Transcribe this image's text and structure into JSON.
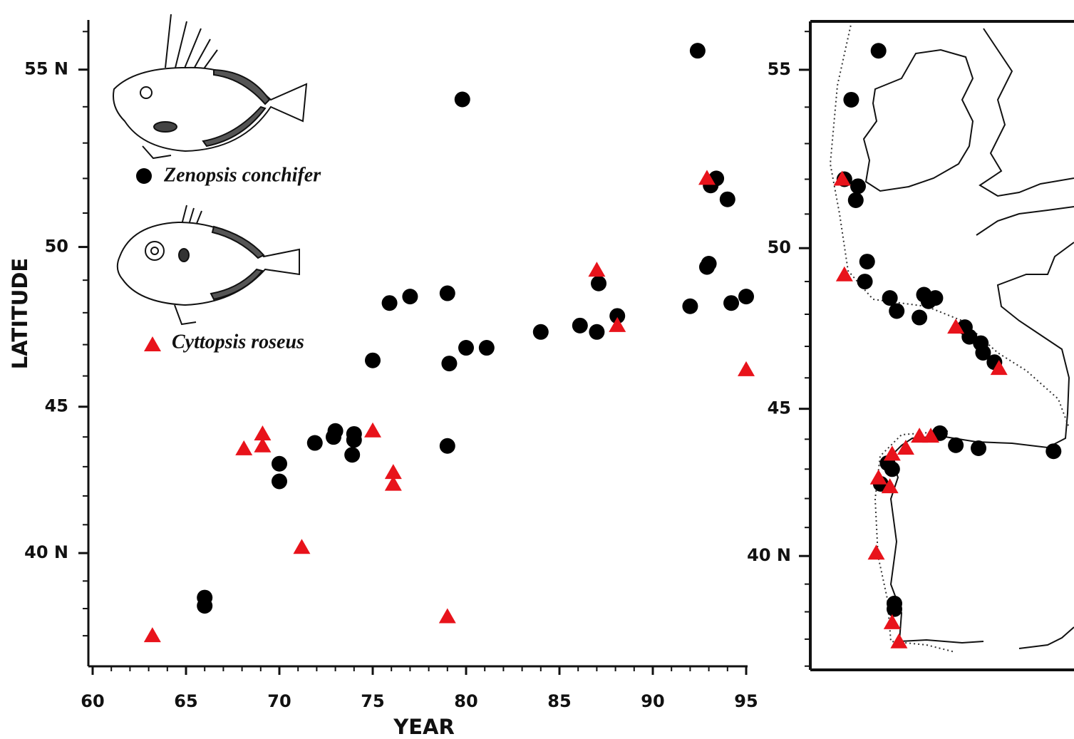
{
  "chart_data": [
    {
      "type": "scatter",
      "xlabel": "YEAR",
      "ylabel": "LATITUDE",
      "y_scale": "mercator",
      "xlim": [
        60,
        95
      ],
      "ylim": [
        35.94,
        56.3
      ],
      "xticks": [
        60,
        65,
        70,
        75,
        80,
        85,
        90,
        95
      ],
      "xminorticks": [
        61,
        62,
        63,
        64,
        66,
        67,
        68,
        69,
        71,
        72,
        73,
        74,
        76,
        77,
        78,
        79,
        81,
        82,
        83,
        84,
        86,
        87,
        88,
        89,
        91,
        92,
        93,
        94
      ],
      "yticks": [
        {
          "value": 40,
          "label": "40 N"
        },
        45,
        50,
        {
          "value": 55,
          "label": "55 N"
        }
      ],
      "yminorticks": [
        37,
        38,
        39,
        41,
        42,
        43,
        44,
        46,
        47,
        48,
        49,
        51,
        52,
        53,
        54,
        56
      ],
      "series": [
        {
          "name": "Zenopsis conchifer",
          "marker": "circle",
          "color": "#000000",
          "x": [
            92.4,
            79.8,
            93.4,
            93.1,
            94.0,
            93.0,
            92.9,
            87.1,
            92.0,
            94.2,
            95.0,
            88.1,
            87.0,
            86.1,
            84.0,
            81.1,
            80.0,
            79.1,
            79.0,
            77.0,
            75.9,
            75.0,
            79.0,
            74.0,
            74.0,
            73.9,
            73.0,
            72.9,
            71.9,
            70.0,
            70.0,
            66.0,
            66.0
          ],
          "values": [
            55.5,
            54.2,
            52.0,
            51.8,
            51.4,
            49.5,
            49.4,
            48.9,
            48.2,
            48.3,
            48.5,
            47.9,
            47.4,
            47.6,
            47.4,
            46.9,
            46.9,
            46.4,
            48.6,
            48.5,
            48.3,
            46.5,
            43.7,
            44.1,
            43.9,
            43.4,
            44.2,
            44.0,
            43.8,
            43.1,
            42.5,
            38.4,
            38.1
          ]
        },
        {
          "name": "Cyttopsis roseus",
          "marker": "triangle",
          "color": "#e8131b",
          "x": [
            63.2,
            68.1,
            69.1,
            69.1,
            71.2,
            75.0,
            76.1,
            76.1,
            79.0,
            87.0,
            88.1,
            92.9,
            95.0
          ],
          "values": [
            37.0,
            43.6,
            44.1,
            43.7,
            40.2,
            44.2,
            42.8,
            42.4,
            37.7,
            49.3,
            47.6,
            52.0,
            46.2
          ]
        }
      ]
    },
    {
      "type": "map",
      "y_scale": "mercator",
      "xlim": [
        -12.2,
        -0.6
      ],
      "ylim": [
        35.86,
        56.26
      ],
      "yticks": [
        {
          "value": 40,
          "label": "40 N"
        },
        45,
        50,
        55
      ],
      "yminorticks": [
        36,
        37,
        38,
        39,
        41,
        42,
        43,
        44,
        46,
        47,
        48,
        49,
        51,
        52,
        53,
        54,
        56
      ],
      "series": [
        {
          "marker": "circle",
          "color": "#000000",
          "x": [
            -9.2,
            -10.4,
            -10.7,
            -10.1,
            -10.2,
            -9.7,
            -9.8,
            -8.7,
            -8.4,
            -7.2,
            -6.7,
            -7.0,
            -7.4,
            -5.4,
            -5.2,
            -4.7,
            -4.6,
            -4.1,
            -1.5,
            -6.5,
            -5.8,
            -4.8,
            -8.8,
            -8.6,
            -9.1,
            -8.5,
            -8.5
          ],
          "values": [
            55.5,
            54.2,
            52.0,
            51.8,
            51.4,
            49.6,
            49.0,
            48.5,
            48.1,
            48.6,
            48.5,
            48.4,
            47.9,
            47.6,
            47.3,
            47.1,
            46.8,
            46.5,
            43.6,
            44.2,
            43.8,
            43.7,
            43.2,
            43.0,
            42.5,
            38.3,
            38.1
          ]
        },
        {
          "marker": "triangle",
          "color": "#e8131b",
          "x": [
            -10.8,
            -10.7,
            -5.8,
            -3.9,
            -7.4,
            -6.9,
            -8.0,
            -8.6,
            -9.2,
            -8.7,
            -9.3,
            -8.6,
            -8.3
          ],
          "values": [
            52.0,
            49.2,
            47.6,
            46.3,
            44.1,
            44.1,
            43.7,
            43.5,
            42.7,
            42.4,
            40.1,
            37.6,
            36.9
          ]
        }
      ]
    }
  ]
}
